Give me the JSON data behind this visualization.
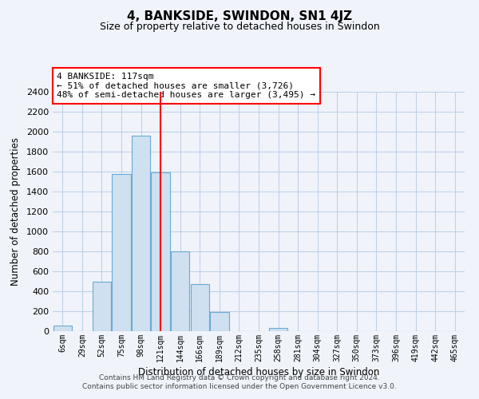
{
  "title": "4, BANKSIDE, SWINDON, SN1 4JZ",
  "subtitle": "Size of property relative to detached houses in Swindon",
  "xlabel": "Distribution of detached houses by size in Swindon",
  "ylabel": "Number of detached properties",
  "bar_labels": [
    "6sqm",
    "29sqm",
    "52sqm",
    "75sqm",
    "98sqm",
    "121sqm",
    "144sqm",
    "166sqm",
    "189sqm",
    "212sqm",
    "235sqm",
    "258sqm",
    "281sqm",
    "304sqm",
    "327sqm",
    "350sqm",
    "373sqm",
    "396sqm",
    "419sqm",
    "442sqm",
    "465sqm"
  ],
  "bar_heights": [
    60,
    0,
    500,
    1580,
    1960,
    1590,
    800,
    470,
    190,
    0,
    0,
    30,
    0,
    0,
    0,
    0,
    0,
    0,
    0,
    0,
    0
  ],
  "bar_color": "#cfe0f0",
  "bar_edge_color": "#6aaad4",
  "vline_index": 5,
  "vline_color": "red",
  "annotation_title": "4 BANKSIDE: 117sqm",
  "annotation_line1": "← 51% of detached houses are smaller (3,726)",
  "annotation_line2": "48% of semi-detached houses are larger (3,495) →",
  "annotation_box_color": "white",
  "annotation_box_edge": "red",
  "ylim": [
    0,
    2400
  ],
  "yticks": [
    0,
    200,
    400,
    600,
    800,
    1000,
    1200,
    1400,
    1600,
    1800,
    2000,
    2200,
    2400
  ],
  "footer1": "Contains HM Land Registry data © Crown copyright and database right 2024.",
  "footer2": "Contains public sector information licensed under the Open Government Licence v3.0.",
  "background_color": "#f0f4fa",
  "grid_color": "#c0d0e8"
}
